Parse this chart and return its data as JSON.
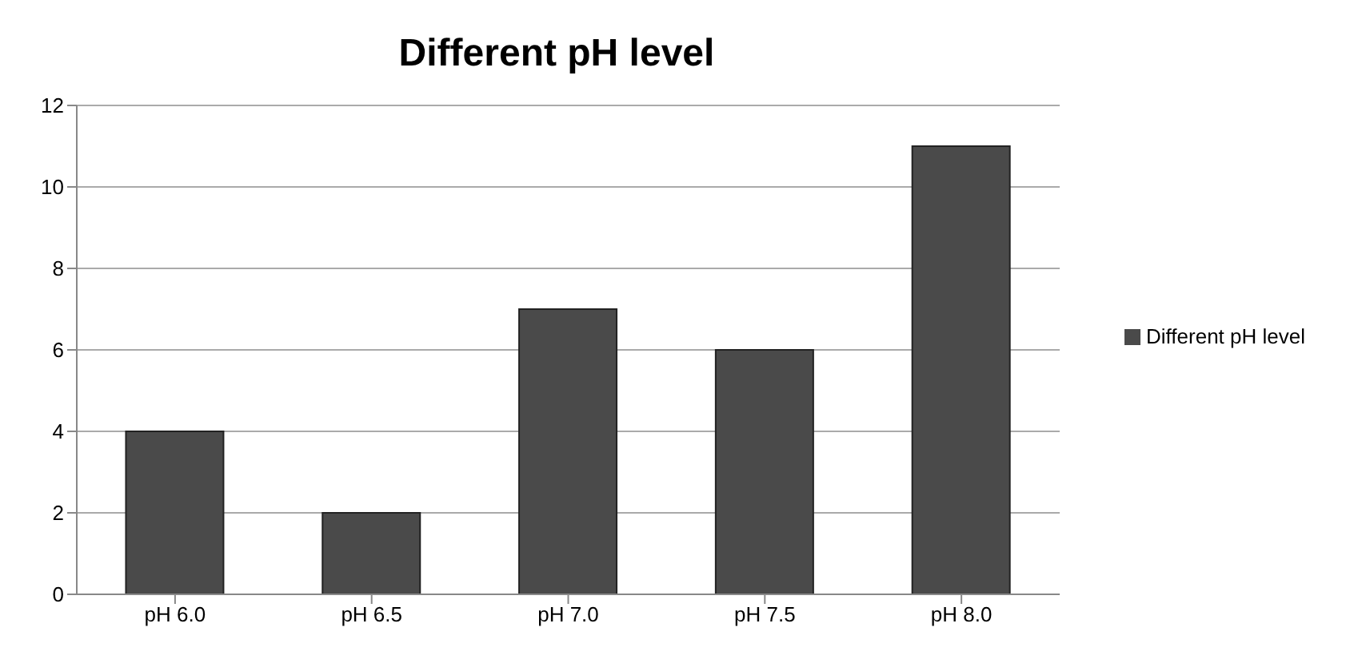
{
  "chart_data": {
    "type": "bar",
    "title": "Different pH level",
    "categories": [
      "pH 6.0",
      "pH 6.5",
      "pH 7.0",
      "pH 7.5",
      "pH 8.0"
    ],
    "series": [
      {
        "name": "Different pH level",
        "color": "#4a4a4a",
        "values": [
          4,
          2,
          7,
          6,
          11
        ]
      }
    ],
    "ylim": [
      0,
      12
    ],
    "yticks": [
      0,
      2,
      4,
      6,
      8,
      10,
      12
    ],
    "grid": "y",
    "legend": "right"
  }
}
